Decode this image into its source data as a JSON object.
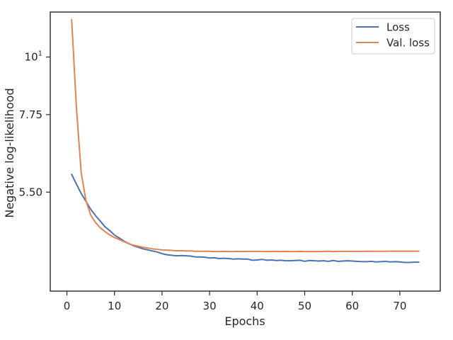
{
  "chart_data": {
    "type": "line",
    "title": "",
    "xlabel": "Epochs",
    "ylabel": "Negative log-likelihood",
    "xlim": [
      -3.5,
      78.5
    ],
    "ylim": [
      3.55,
      12.2
    ],
    "y_scale": "log",
    "grid": false,
    "legend_position": "top-right",
    "x_ticks": [
      0,
      10,
      20,
      30,
      40,
      50,
      60,
      70
    ],
    "x_tick_labels": [
      "0",
      "10",
      "20",
      "30",
      "40",
      "50",
      "60",
      "70"
    ],
    "y_ticks": [
      5.5,
      7.75,
      10
    ],
    "y_tick_labels": [
      "5.50",
      "7.75",
      "10"
    ],
    "y_tick_exponent": "1",
    "colors": {
      "Loss": "#4c72b0",
      "Val. loss": "#dd8452",
      "axis": "#262626"
    },
    "x": [
      1,
      2,
      3,
      4,
      5,
      6,
      7,
      8,
      9,
      10,
      11,
      12,
      13,
      14,
      15,
      16,
      17,
      18,
      19,
      20,
      21,
      22,
      23,
      24,
      25,
      26,
      27,
      28,
      29,
      30,
      31,
      32,
      33,
      34,
      35,
      36,
      37,
      38,
      39,
      40,
      41,
      42,
      43,
      44,
      45,
      46,
      47,
      48,
      49,
      50,
      51,
      52,
      53,
      54,
      55,
      56,
      57,
      58,
      59,
      60,
      61,
      62,
      63,
      64,
      65,
      66,
      67,
      68,
      69,
      70,
      71,
      72,
      73,
      74
    ],
    "series": [
      {
        "name": "Loss",
        "values": [
          5.95,
          5.7,
          5.47,
          5.28,
          5.1,
          4.96,
          4.84,
          4.72,
          4.64,
          4.55,
          4.49,
          4.43,
          4.38,
          4.34,
          4.31,
          4.28,
          4.26,
          4.24,
          4.22,
          4.19,
          4.17,
          4.16,
          4.15,
          4.155,
          4.15,
          4.145,
          4.13,
          4.13,
          4.125,
          4.11,
          4.115,
          4.1,
          4.105,
          4.1,
          4.09,
          4.095,
          4.09,
          4.09,
          4.07,
          4.075,
          4.085,
          4.07,
          4.075,
          4.065,
          4.07,
          4.06,
          4.06,
          4.065,
          4.07,
          4.05,
          4.065,
          4.06,
          4.055,
          4.06,
          4.05,
          4.065,
          4.05,
          4.055,
          4.06,
          4.055,
          4.05,
          4.045,
          4.045,
          4.05,
          4.04,
          4.045,
          4.05,
          4.04,
          4.045,
          4.04,
          4.03,
          4.03,
          4.035,
          4.035
        ]
      },
      {
        "name": "Val. loss",
        "values": [
          11.8,
          8.0,
          6.0,
          5.3,
          4.97,
          4.81,
          4.7,
          4.62,
          4.55,
          4.5,
          4.46,
          4.42,
          4.38,
          4.35,
          4.33,
          4.31,
          4.295,
          4.28,
          4.27,
          4.26,
          4.255,
          4.25,
          4.245,
          4.245,
          4.24,
          4.24,
          4.235,
          4.235,
          4.235,
          4.235,
          4.23,
          4.23,
          4.232,
          4.23,
          4.23,
          4.232,
          4.23,
          4.232,
          4.232,
          4.232,
          4.232,
          4.23,
          4.232,
          4.232,
          4.23,
          4.232,
          4.23,
          4.23,
          4.232,
          4.23,
          4.23,
          4.23,
          4.23,
          4.232,
          4.235,
          4.23,
          4.232,
          4.232,
          4.232,
          4.232,
          4.232,
          4.232,
          4.234,
          4.234,
          4.234,
          4.234,
          4.234,
          4.236,
          4.236,
          4.236,
          4.236,
          4.236,
          4.236,
          4.236
        ]
      }
    ]
  }
}
